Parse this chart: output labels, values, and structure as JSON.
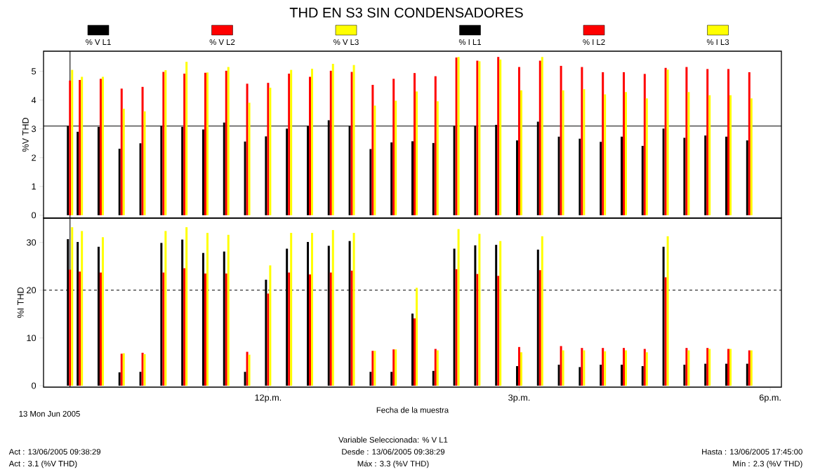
{
  "chart_data": [
    {
      "type": "bar",
      "title": "THD EN S3 SIN CONDENSADORES",
      "ylabel": "%V THD",
      "legend": "top",
      "tick_labels": "y",
      "x": [
        "2005-06-13T09:38",
        "2005-06-13T09:45",
        "2005-06-13T10:00",
        "2005-06-13T10:15",
        "2005-06-13T10:30",
        "2005-06-13T10:45",
        "2005-06-13T11:00",
        "2005-06-13T11:15",
        "2005-06-13T11:30",
        "2005-06-13T11:45",
        "2005-06-13T12:00",
        "2005-06-13T12:15",
        "2005-06-13T12:30",
        "2005-06-13T12:45",
        "2005-06-13T13:00",
        "2005-06-13T13:15",
        "2005-06-13T13:30",
        "2005-06-13T13:45",
        "2005-06-13T14:00",
        "2005-06-13T14:15",
        "2005-06-13T14:30",
        "2005-06-13T14:45",
        "2005-06-13T15:00",
        "2005-06-13T15:15",
        "2005-06-13T15:30",
        "2005-06-13T15:45",
        "2005-06-13T16:00",
        "2005-06-13T16:15",
        "2005-06-13T16:30",
        "2005-06-13T16:45",
        "2005-06-13T17:00",
        "2005-06-13T17:15",
        "2005-06-13T17:30",
        "2005-06-13T17:45"
      ],
      "xlim": [
        "2005-06-13T09:19",
        "2005-06-13T18:08"
      ],
      "ylim": [
        -0.1,
        5.7
      ],
      "yticks": [
        0,
        1,
        2,
        3,
        4,
        5
      ],
      "ref_lines": [
        {
          "axis": "y",
          "value": 3.1,
          "color": "#000000"
        },
        {
          "axis": "x",
          "value": "2005-06-13T09:38",
          "color": "#000000"
        }
      ],
      "series": [
        {
          "name": "% V L1",
          "color": "#000000",
          "values": [
            3.1,
            2.9,
            3.07,
            2.31,
            2.5,
            3.1,
            3.07,
            2.98,
            3.22,
            2.56,
            2.74,
            3.01,
            3.1,
            3.3,
            3.1,
            2.3,
            2.53,
            2.57,
            2.51,
            3.11,
            3.11,
            3.14,
            2.6,
            3.25,
            2.73,
            2.66,
            2.55,
            2.73,
            2.41,
            3.01,
            2.69,
            2.77,
            2.73,
            2.6
          ]
        },
        {
          "name": "% V L2",
          "color": "#ff0000",
          "values": [
            4.68,
            4.7,
            4.74,
            4.4,
            4.46,
            4.98,
            4.92,
            4.95,
            5.02,
            4.57,
            4.6,
            4.92,
            4.81,
            5.02,
            4.98,
            4.53,
            4.74,
            4.94,
            4.83,
            5.48,
            5.37,
            5.5,
            5.15,
            5.37,
            5.19,
            5.15,
            4.97,
            4.97,
            4.91,
            5.12,
            5.15,
            5.08,
            5.08,
            4.97
          ]
        },
        {
          "name": "% V L3",
          "color": "#ffff00",
          "values": [
            5.05,
            4.81,
            4.81,
            3.7,
            3.61,
            5.04,
            5.33,
            4.96,
            5.15,
            3.91,
            4.43,
            5.05,
            5.09,
            5.26,
            5.22,
            3.81,
            3.98,
            4.3,
            3.96,
            5.5,
            5.35,
            5.41,
            4.34,
            5.5,
            4.34,
            4.38,
            4.2,
            4.28,
            4.06,
            5.06,
            4.28,
            4.17,
            4.17,
            4.06
          ]
        }
      ]
    },
    {
      "type": "bar",
      "ylabel": "%I THD",
      "xlabel": "Fecha de la muestra",
      "legend": "top",
      "x": [
        "2005-06-13T09:38",
        "2005-06-13T09:45",
        "2005-06-13T10:00",
        "2005-06-13T10:15",
        "2005-06-13T10:30",
        "2005-06-13T10:45",
        "2005-06-13T11:00",
        "2005-06-13T11:15",
        "2005-06-13T11:30",
        "2005-06-13T11:45",
        "2005-06-13T12:00",
        "2005-06-13T12:15",
        "2005-06-13T12:30",
        "2005-06-13T12:45",
        "2005-06-13T13:00",
        "2005-06-13T13:15",
        "2005-06-13T13:30",
        "2005-06-13T13:45",
        "2005-06-13T14:00",
        "2005-06-13T14:15",
        "2005-06-13T14:30",
        "2005-06-13T14:45",
        "2005-06-13T15:00",
        "2005-06-13T15:15",
        "2005-06-13T15:30",
        "2005-06-13T15:45",
        "2005-06-13T16:00",
        "2005-06-13T16:15",
        "2005-06-13T16:30",
        "2005-06-13T16:45",
        "2005-06-13T17:00",
        "2005-06-13T17:15",
        "2005-06-13T17:30",
        "2005-06-13T17:45"
      ],
      "xlim": [
        "2005-06-13T09:19",
        "2005-06-13T18:08"
      ],
      "xticks": [
        {
          "value": "2005-06-13T12:00",
          "label": "12p.m."
        },
        {
          "value": "2005-06-13T15:00",
          "label": "3p.m."
        },
        {
          "value": "2005-06-13T18:00",
          "label": "6p.m."
        }
      ],
      "ylim": [
        -0.3,
        35.1
      ],
      "yticks": [
        0,
        10,
        20,
        30
      ],
      "ref_lines": [
        {
          "axis": "y",
          "value": 20,
          "color": "#000000",
          "line_style": "dashed"
        },
        {
          "axis": "x",
          "value": "2005-06-13T09:38",
          "color": "#000000"
        }
      ],
      "annotations": [
        "13 Mon Jun 2005",
        "Variable Seleccionada: % V L1",
        "Act : 13/06/2005 09:38:29",
        "Act : 3.1 (%V THD)",
        "Desde : 13/06/2005 09:38:29",
        "Máx : 3.3 (%V THD)",
        "Hasta : 13/06/2005 17:45:00",
        "Mín : 2.3 (%V THD)"
      ],
      "series": [
        {
          "name": "% I L1",
          "color": "#000000",
          "values": [
            30.7,
            30.1,
            29.1,
            2.8,
            2.9,
            29.9,
            30.6,
            27.8,
            28.1,
            2.9,
            22.2,
            28.7,
            30.1,
            29.3,
            30.3,
            2.9,
            2.9,
            15.1,
            3.1,
            28.7,
            29.4,
            29.5,
            4.1,
            28.5,
            4.4,
            3.9,
            4.4,
            4.4,
            4.1,
            29.1,
            4.4,
            4.6,
            4.6,
            4.6
          ]
        },
        {
          "name": "% I L2",
          "color": "#ff0000",
          "values": [
            24.3,
            23.9,
            23.7,
            6.7,
            6.9,
            23.7,
            24.6,
            23.5,
            23.5,
            7.1,
            19.3,
            23.7,
            23.3,
            23.7,
            24.1,
            7.3,
            7.6,
            14.1,
            7.7,
            24.4,
            23.4,
            23,
            8.1,
            24.2,
            8.3,
            7.9,
            7.9,
            7.9,
            7.7,
            22.7,
            7.9,
            7.9,
            7.7,
            7.4
          ]
        },
        {
          "name": "% I L3",
          "color": "#ffff00",
          "values": [
            33.2,
            32.4,
            31.1,
            6.8,
            6.6,
            32.4,
            33.2,
            32,
            31.6,
            6.5,
            25.2,
            32,
            32,
            32.6,
            32,
            7.3,
            7.6,
            20.5,
            7.4,
            32.8,
            31.8,
            30.3,
            7,
            31.3,
            7.4,
            7.4,
            7.2,
            7.4,
            7,
            31.3,
            7.4,
            7.7,
            7.7,
            7.4
          ]
        }
      ]
    }
  ]
}
